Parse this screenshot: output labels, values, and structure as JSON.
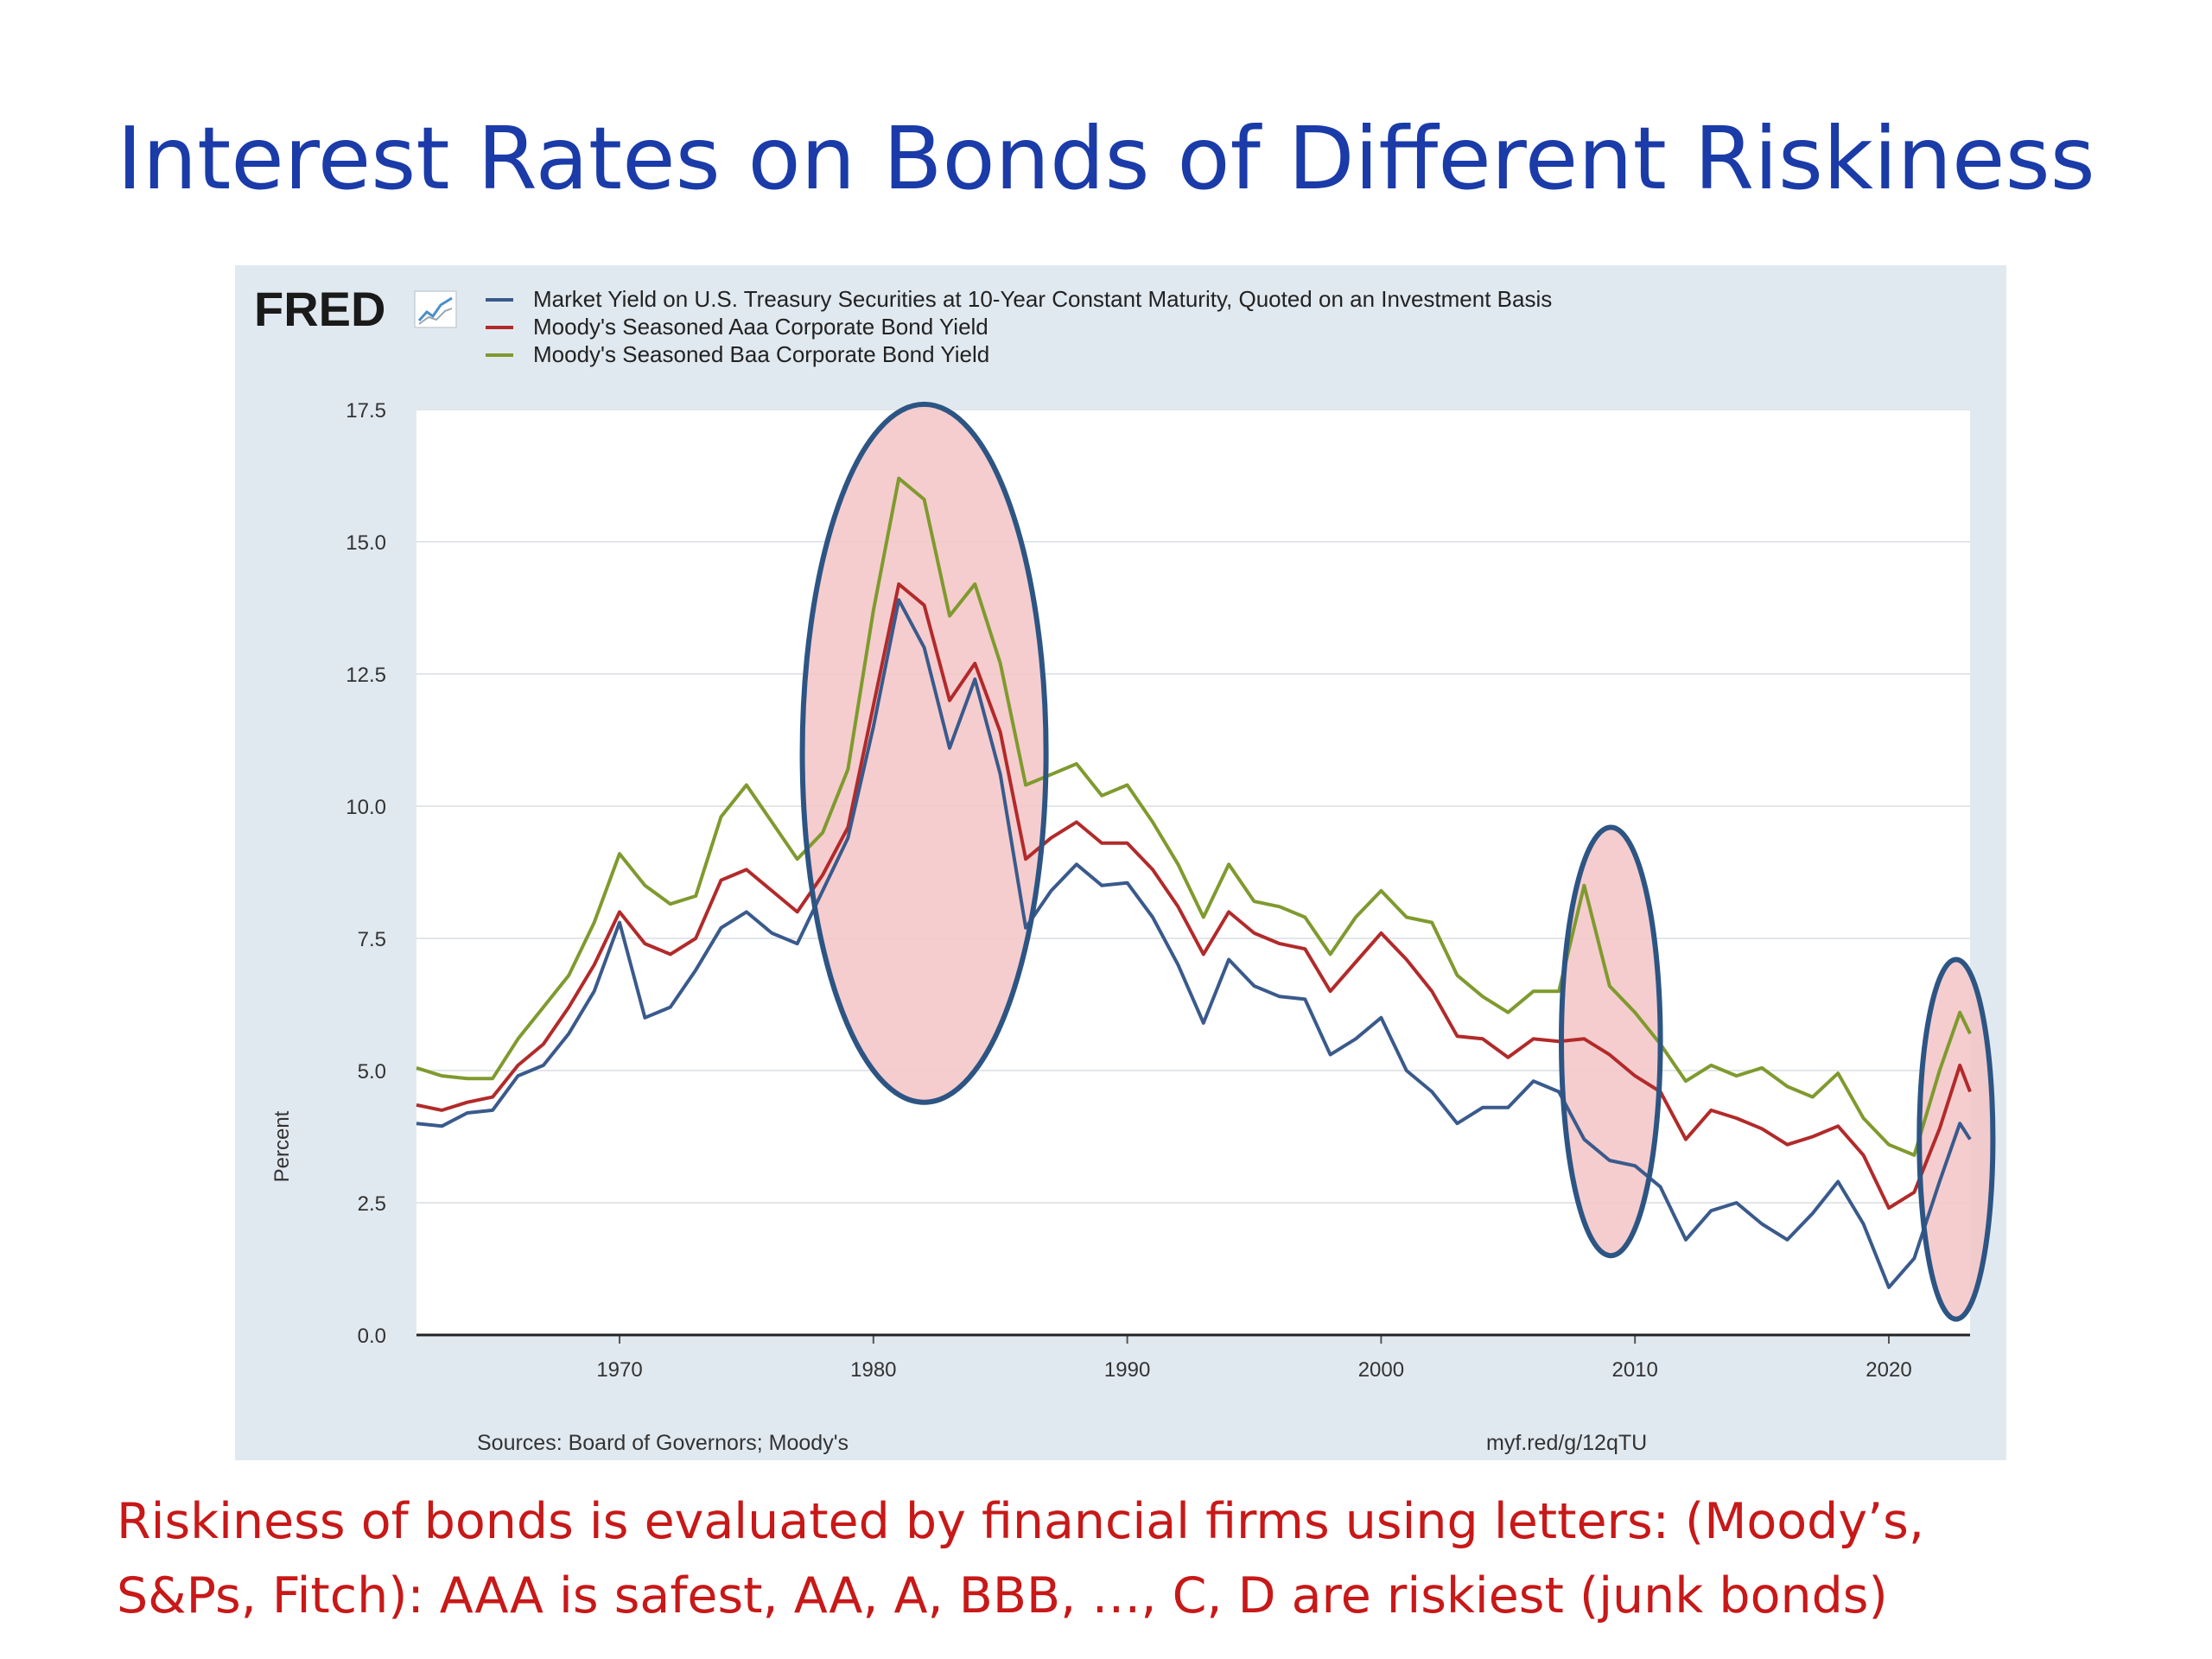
{
  "slide": {
    "title": "Interest Rates on Bonds of Different Riskiness",
    "caption_lines": [
      "Riskiness of bonds is evaluated by financial firms using letters: (Moody’s,",
      "S&Ps, Fitch): AAA is safest, AA, A, BBB, …, C, D are riskiest (junk bonds)"
    ],
    "caption_color": "#c81818",
    "title_color": "#1a3ba8"
  },
  "chart_data": {
    "type": "line",
    "brand": "FRED",
    "ylabel": "Percent",
    "xlabel": "",
    "ylim": [
      0,
      17.5
    ],
    "xlim": [
      1962,
      2023.2
    ],
    "yticks": [
      "0.0",
      "2.5",
      "5.0",
      "7.5",
      "10.0",
      "12.5",
      "15.0",
      "17.5"
    ],
    "xticks": [
      "1970",
      "1980",
      "1990",
      "2000",
      "2010",
      "2020"
    ],
    "grid": true,
    "legend_position": "top-left",
    "source": "Sources: Board of Governors; Moody's",
    "link": "myf.red/g/12qTU",
    "series": [
      {
        "name": "Market Yield on U.S. Treasury Securities at 10-Year Constant Maturity, Quoted on an Investment Basis",
        "color": "#3a5a8c",
        "points": [
          [
            1962,
            4.0
          ],
          [
            1963,
            3.95
          ],
          [
            1964,
            4.2
          ],
          [
            1965,
            4.25
          ],
          [
            1966,
            4.9
          ],
          [
            1967,
            5.1
          ],
          [
            1968,
            5.7
          ],
          [
            1969,
            6.5
          ],
          [
            1970,
            7.8
          ],
          [
            1971,
            6.0
          ],
          [
            1972,
            6.2
          ],
          [
            1973,
            6.9
          ],
          [
            1974,
            7.7
          ],
          [
            1975,
            8.0
          ],
          [
            1976,
            7.6
          ],
          [
            1977,
            7.4
          ],
          [
            1978,
            8.4
          ],
          [
            1979,
            9.4
          ],
          [
            1980,
            11.5
          ],
          [
            1981,
            13.9
          ],
          [
            1982,
            13.0
          ],
          [
            1983,
            11.1
          ],
          [
            1984,
            12.4
          ],
          [
            1985,
            10.6
          ],
          [
            1986,
            7.7
          ],
          [
            1987,
            8.4
          ],
          [
            1988,
            8.9
          ],
          [
            1989,
            8.5
          ],
          [
            1990,
            8.55
          ],
          [
            1991,
            7.9
          ],
          [
            1992,
            7.0
          ],
          [
            1993,
            5.9
          ],
          [
            1994,
            7.1
          ],
          [
            1995,
            6.6
          ],
          [
            1996,
            6.4
          ],
          [
            1997,
            6.35
          ],
          [
            1998,
            5.3
          ],
          [
            1999,
            5.6
          ],
          [
            2000,
            6.0
          ],
          [
            2001,
            5.0
          ],
          [
            2002,
            4.6
          ],
          [
            2003,
            4.0
          ],
          [
            2004,
            4.3
          ],
          [
            2005,
            4.3
          ],
          [
            2006,
            4.8
          ],
          [
            2007,
            4.6
          ],
          [
            2008,
            3.7
          ],
          [
            2009,
            3.3
          ],
          [
            2010,
            3.2
          ],
          [
            2011,
            2.8
          ],
          [
            2012,
            1.8
          ],
          [
            2013,
            2.35
          ],
          [
            2014,
            2.5
          ],
          [
            2015,
            2.1
          ],
          [
            2016,
            1.8
          ],
          [
            2017,
            2.3
          ],
          [
            2018,
            2.9
          ],
          [
            2019,
            2.1
          ],
          [
            2020,
            0.9
          ],
          [
            2021,
            1.45
          ],
          [
            2022,
            2.9
          ],
          [
            2022.8,
            4.0
          ],
          [
            2023.2,
            3.7
          ]
        ]
      },
      {
        "name": "Moody's Seasoned Aaa Corporate Bond Yield",
        "color": "#b22a2a",
        "points": [
          [
            1962,
            4.35
          ],
          [
            1963,
            4.25
          ],
          [
            1964,
            4.4
          ],
          [
            1965,
            4.5
          ],
          [
            1966,
            5.1
          ],
          [
            1967,
            5.5
          ],
          [
            1968,
            6.2
          ],
          [
            1969,
            7.0
          ],
          [
            1970,
            8.0
          ],
          [
            1971,
            7.4
          ],
          [
            1972,
            7.2
          ],
          [
            1973,
            7.5
          ],
          [
            1974,
            8.6
          ],
          [
            1975,
            8.8
          ],
          [
            1976,
            8.4
          ],
          [
            1977,
            8.0
          ],
          [
            1978,
            8.7
          ],
          [
            1979,
            9.6
          ],
          [
            1980,
            11.9
          ],
          [
            1981,
            14.2
          ],
          [
            1982,
            13.8
          ],
          [
            1983,
            12.0
          ],
          [
            1984,
            12.7
          ],
          [
            1985,
            11.4
          ],
          [
            1986,
            9.0
          ],
          [
            1987,
            9.4
          ],
          [
            1988,
            9.7
          ],
          [
            1989,
            9.3
          ],
          [
            1990,
            9.3
          ],
          [
            1991,
            8.8
          ],
          [
            1992,
            8.1
          ],
          [
            1993,
            7.2
          ],
          [
            1994,
            8.0
          ],
          [
            1995,
            7.6
          ],
          [
            1996,
            7.4
          ],
          [
            1997,
            7.3
          ],
          [
            1998,
            6.5
          ],
          [
            1999,
            7.05
          ],
          [
            2000,
            7.6
          ],
          [
            2001,
            7.1
          ],
          [
            2002,
            6.5
          ],
          [
            2003,
            5.65
          ],
          [
            2004,
            5.6
          ],
          [
            2005,
            5.25
          ],
          [
            2006,
            5.6
          ],
          [
            2007,
            5.55
          ],
          [
            2008,
            5.6
          ],
          [
            2009,
            5.3
          ],
          [
            2010,
            4.9
          ],
          [
            2011,
            4.6
          ],
          [
            2012,
            3.7
          ],
          [
            2013,
            4.25
          ],
          [
            2014,
            4.1
          ],
          [
            2015,
            3.9
          ],
          [
            2016,
            3.6
          ],
          [
            2017,
            3.75
          ],
          [
            2018,
            3.95
          ],
          [
            2019,
            3.4
          ],
          [
            2020,
            2.4
          ],
          [
            2021,
            2.7
          ],
          [
            2022,
            3.9
          ],
          [
            2022.8,
            5.1
          ],
          [
            2023.2,
            4.6
          ]
        ]
      },
      {
        "name": "Moody's Seasoned Baa Corporate Bond Yield",
        "color": "#7f9a2e",
        "points": [
          [
            1962,
            5.05
          ],
          [
            1963,
            4.9
          ],
          [
            1964,
            4.85
          ],
          [
            1965,
            4.85
          ],
          [
            1966,
            5.6
          ],
          [
            1967,
            6.2
          ],
          [
            1968,
            6.8
          ],
          [
            1969,
            7.8
          ],
          [
            1970,
            9.1
          ],
          [
            1971,
            8.5
          ],
          [
            1972,
            8.15
          ],
          [
            1973,
            8.3
          ],
          [
            1974,
            9.8
          ],
          [
            1975,
            10.4
          ],
          [
            1976,
            9.7
          ],
          [
            1977,
            9.0
          ],
          [
            1978,
            9.5
          ],
          [
            1979,
            10.7
          ],
          [
            1980,
            13.7
          ],
          [
            1981,
            16.2
          ],
          [
            1982,
            15.8
          ],
          [
            1983,
            13.6
          ],
          [
            1984,
            14.2
          ],
          [
            1985,
            12.7
          ],
          [
            1986,
            10.4
          ],
          [
            1987,
            10.6
          ],
          [
            1988,
            10.8
          ],
          [
            1989,
            10.2
          ],
          [
            1990,
            10.4
          ],
          [
            1991,
            9.7
          ],
          [
            1992,
            8.9
          ],
          [
            1993,
            7.9
          ],
          [
            1994,
            8.9
          ],
          [
            1995,
            8.2
          ],
          [
            1996,
            8.1
          ],
          [
            1997,
            7.9
          ],
          [
            1998,
            7.2
          ],
          [
            1999,
            7.9
          ],
          [
            2000,
            8.4
          ],
          [
            2001,
            7.9
          ],
          [
            2002,
            7.8
          ],
          [
            2003,
            6.8
          ],
          [
            2004,
            6.4
          ],
          [
            2005,
            6.1
          ],
          [
            2006,
            6.5
          ],
          [
            2007,
            6.5
          ],
          [
            2008,
            8.5
          ],
          [
            2009,
            6.6
          ],
          [
            2010,
            6.1
          ],
          [
            2011,
            5.5
          ],
          [
            2012,
            4.8
          ],
          [
            2013,
            5.1
          ],
          [
            2014,
            4.9
          ],
          [
            2015,
            5.05
          ],
          [
            2016,
            4.7
          ],
          [
            2017,
            4.5
          ],
          [
            2018,
            4.95
          ],
          [
            2019,
            4.1
          ],
          [
            2020,
            3.6
          ],
          [
            2021,
            3.4
          ],
          [
            2022,
            5.0
          ],
          [
            2022.8,
            6.1
          ],
          [
            2023.2,
            5.7
          ]
        ]
      }
    ],
    "highlights": [
      {
        "x": [
          1977.2,
          1986.8
        ],
        "y": [
          4.4,
          17.6
        ]
      },
      {
        "x": [
          2007.1,
          2011.0
        ],
        "y": [
          1.5,
          9.6
        ]
      },
      {
        "x": [
          2021.2,
          2024.1
        ],
        "y": [
          0.3,
          7.1
        ]
      }
    ]
  }
}
